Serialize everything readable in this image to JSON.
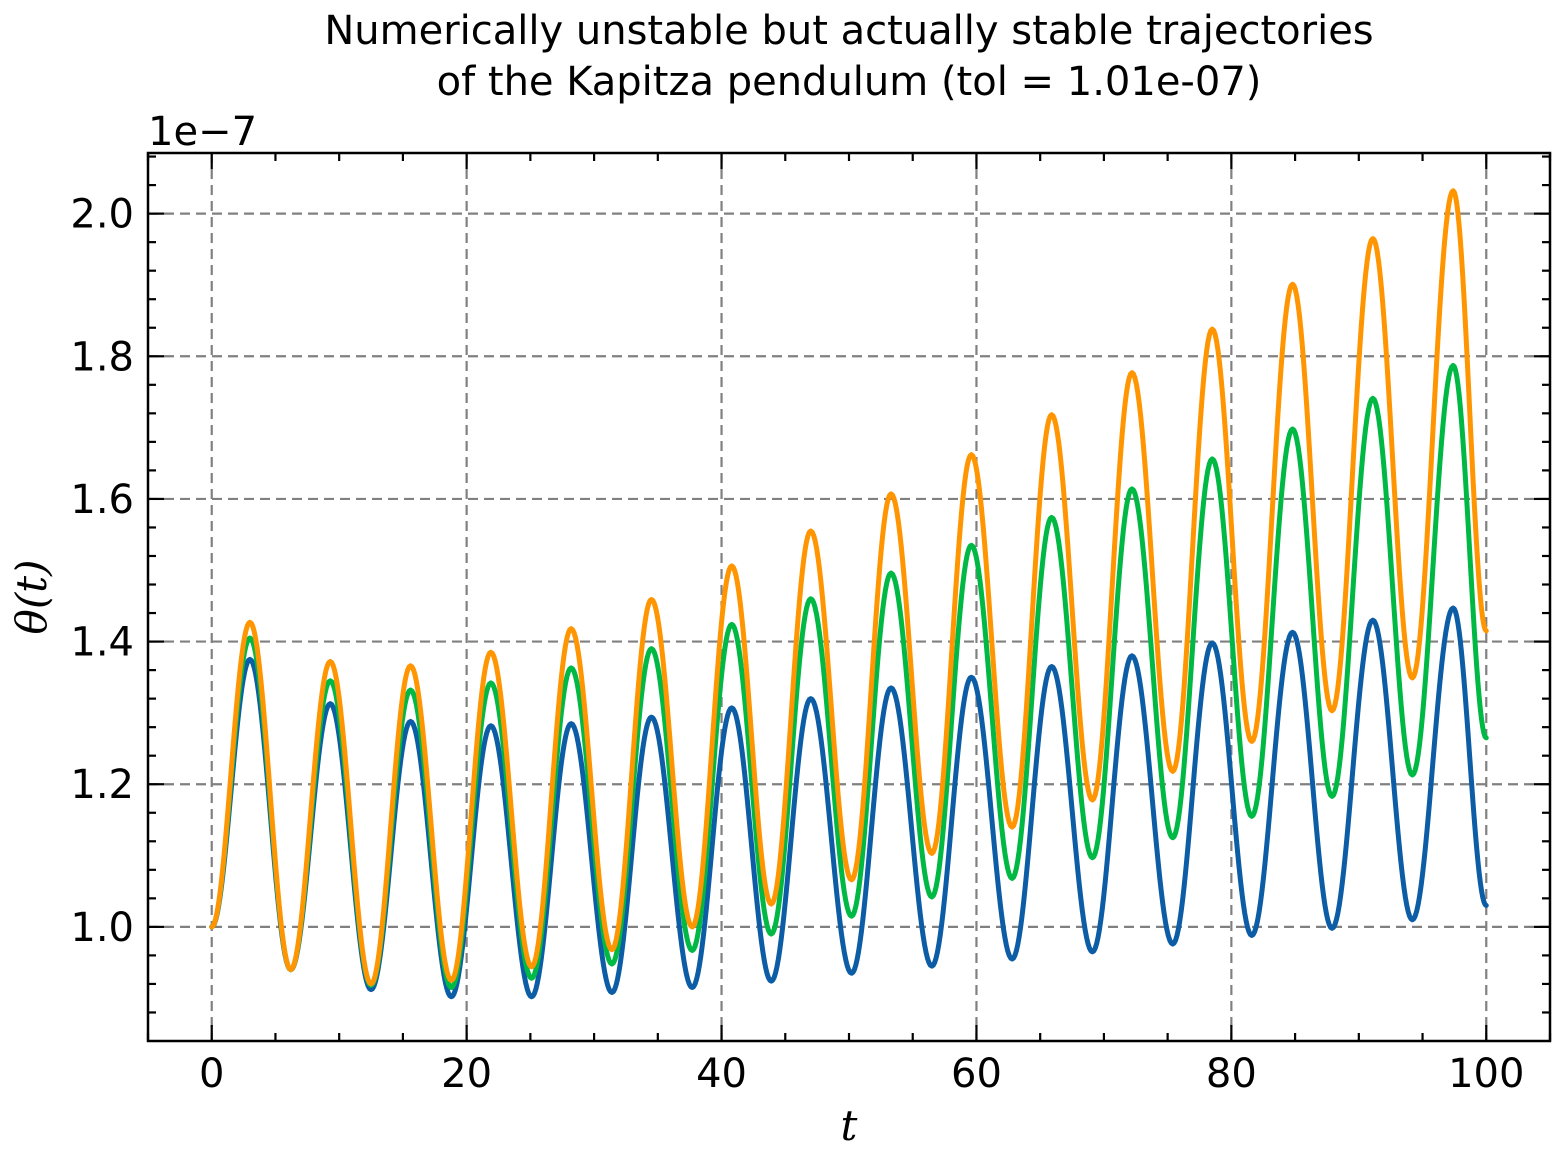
{
  "chart_data": {
    "type": "line",
    "title_lines": [
      "Numerically unstable but actually stable trajectories",
      "of the Kapitza pendulum (tol = 1.01e-07)"
    ],
    "xlabel": "t",
    "ylabel": "θ(t)",
    "y_offset_label": "1e−7",
    "xlim": [
      -5,
      105
    ],
    "ylim": [
      0.84,
      2.085
    ],
    "x_ticks": [
      0,
      20,
      40,
      60,
      80,
      100
    ],
    "x_tick_labels": [
      "0",
      "20",
      "40",
      "60",
      "80",
      "100"
    ],
    "y_ticks": [
      1.0,
      1.2,
      1.4,
      1.6,
      1.8,
      2.0
    ],
    "y_tick_labels": [
      "1.0",
      "1.2",
      "1.4",
      "1.6",
      "1.8",
      "2.0"
    ],
    "grid": true,
    "series": [
      {
        "color": "#0C5DA5",
        "start": 1.0,
        "end": 1.03,
        "peaks": [
          [
            3.0,
            1.375
          ],
          [
            9.3,
            1.313
          ],
          [
            15.6,
            1.288
          ],
          [
            21.9,
            1.282
          ],
          [
            28.2,
            1.285
          ],
          [
            34.5,
            1.294
          ],
          [
            40.8,
            1.307
          ],
          [
            47.0,
            1.32
          ],
          [
            53.3,
            1.335
          ],
          [
            59.6,
            1.35
          ],
          [
            65.9,
            1.365
          ],
          [
            72.2,
            1.38
          ],
          [
            78.5,
            1.398
          ],
          [
            84.8,
            1.413
          ],
          [
            91.1,
            1.43
          ],
          [
            97.4,
            1.447
          ]
        ],
        "troughs": [
          [
            6.2,
            0.94
          ],
          [
            12.5,
            0.912
          ],
          [
            18.8,
            0.902
          ],
          [
            25.1,
            0.902
          ],
          [
            31.4,
            0.908
          ],
          [
            37.7,
            0.915
          ],
          [
            43.9,
            0.924
          ],
          [
            50.2,
            0.935
          ],
          [
            56.5,
            0.945
          ],
          [
            62.8,
            0.955
          ],
          [
            69.1,
            0.965
          ],
          [
            75.4,
            0.976
          ],
          [
            81.6,
            0.988
          ],
          [
            87.9,
            0.998
          ],
          [
            94.2,
            1.01
          ]
        ]
      },
      {
        "color": "#00B945",
        "start": 1.0,
        "end": 1.265,
        "peaks": [
          [
            3.0,
            1.405
          ],
          [
            9.3,
            1.345
          ],
          [
            15.6,
            1.332
          ],
          [
            21.9,
            1.342
          ],
          [
            28.2,
            1.363
          ],
          [
            34.5,
            1.39
          ],
          [
            40.8,
            1.424
          ],
          [
            47.0,
            1.46
          ],
          [
            53.3,
            1.496
          ],
          [
            59.6,
            1.535
          ],
          [
            65.9,
            1.574
          ],
          [
            72.2,
            1.614
          ],
          [
            78.5,
            1.656
          ],
          [
            84.8,
            1.698
          ],
          [
            91.1,
            1.741
          ],
          [
            97.4,
            1.787
          ]
        ],
        "troughs": [
          [
            6.2,
            0.94
          ],
          [
            12.5,
            0.918
          ],
          [
            18.8,
            0.915
          ],
          [
            25.1,
            0.928
          ],
          [
            31.4,
            0.948
          ],
          [
            37.7,
            0.967
          ],
          [
            43.9,
            0.99
          ],
          [
            50.2,
            1.015
          ],
          [
            56.5,
            1.042
          ],
          [
            62.8,
            1.068
          ],
          [
            69.1,
            1.097
          ],
          [
            75.4,
            1.125
          ],
          [
            81.6,
            1.155
          ],
          [
            87.9,
            1.183
          ],
          [
            94.2,
            1.213
          ]
        ]
      },
      {
        "color": "#FF9500",
        "start": 1.0,
        "end": 1.415,
        "peaks": [
          [
            3.0,
            1.427
          ],
          [
            9.3,
            1.372
          ],
          [
            15.6,
            1.366
          ],
          [
            21.9,
            1.385
          ],
          [
            28.2,
            1.418
          ],
          [
            34.5,
            1.459
          ],
          [
            40.8,
            1.506
          ],
          [
            47.0,
            1.555
          ],
          [
            53.3,
            1.607
          ],
          [
            59.6,
            1.662
          ],
          [
            65.9,
            1.718
          ],
          [
            72.2,
            1.777
          ],
          [
            78.5,
            1.838
          ],
          [
            84.8,
            1.901
          ],
          [
            91.1,
            1.965
          ],
          [
            97.4,
            2.032
          ]
        ],
        "troughs": [
          [
            6.2,
            0.94
          ],
          [
            12.5,
            0.92
          ],
          [
            18.8,
            0.925
          ],
          [
            25.1,
            0.944
          ],
          [
            31.4,
            0.968
          ],
          [
            37.7,
            1.0
          ],
          [
            43.9,
            1.032
          ],
          [
            50.2,
            1.066
          ],
          [
            56.5,
            1.103
          ],
          [
            62.8,
            1.14
          ],
          [
            69.1,
            1.178
          ],
          [
            75.4,
            1.218
          ],
          [
            81.6,
            1.26
          ],
          [
            87.9,
            1.303
          ],
          [
            94.2,
            1.349
          ]
        ]
      }
    ]
  }
}
